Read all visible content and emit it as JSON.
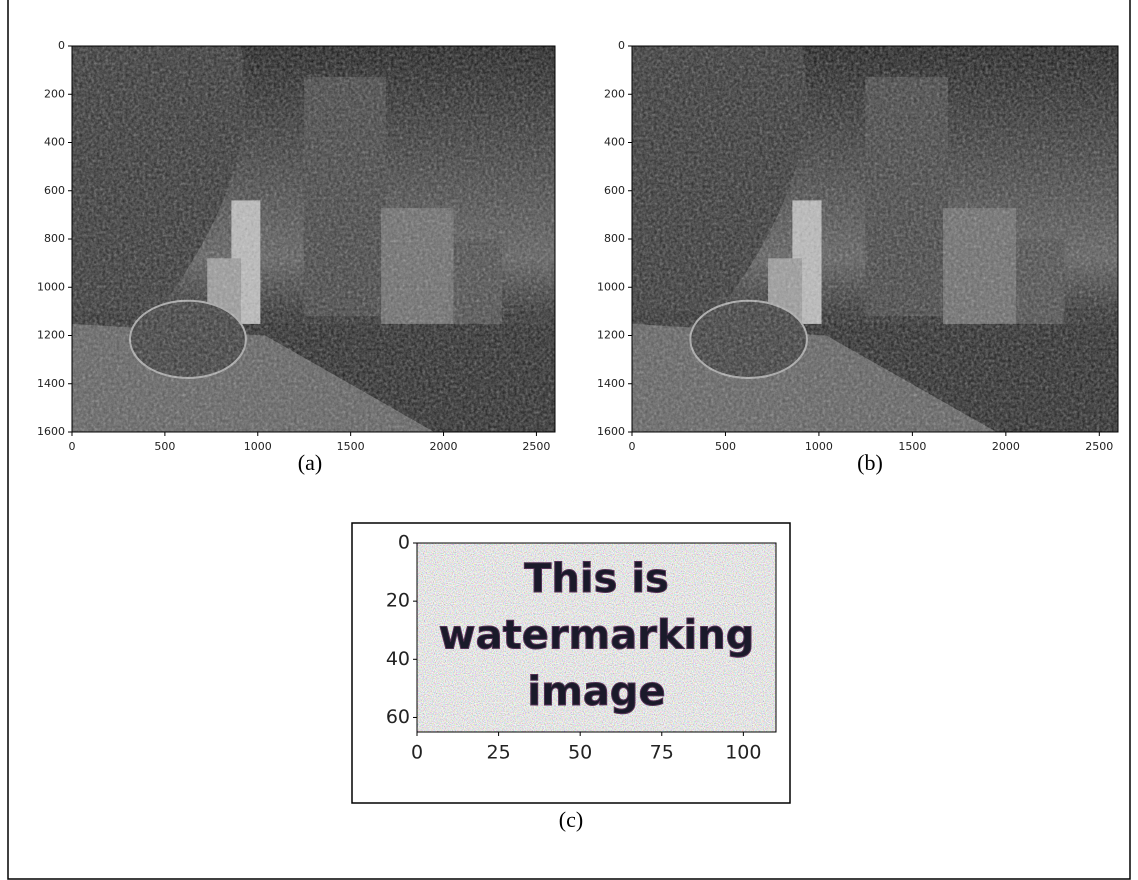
{
  "chart_data": [
    {
      "type": "image",
      "caption": "(a)",
      "xlim": [
        0,
        2600
      ],
      "ylim": [
        1600,
        0
      ],
      "xticks": [
        0,
        500,
        1000,
        1500,
        2000,
        2500
      ],
      "yticks": [
        0,
        200,
        400,
        600,
        800,
        1000,
        1200,
        1400,
        1600
      ]
    },
    {
      "type": "image",
      "caption": "(b)",
      "xlim": [
        0,
        2600
      ],
      "ylim": [
        1600,
        0
      ],
      "xticks": [
        0,
        500,
        1000,
        1500,
        2000,
        2500
      ],
      "yticks": [
        0,
        200,
        400,
        600,
        800,
        1000,
        1200,
        1400,
        1600
      ]
    },
    {
      "type": "image",
      "caption": "(c)",
      "xlim": [
        0,
        110
      ],
      "ylim": [
        65,
        0
      ],
      "xticks": [
        0,
        25,
        50,
        75,
        100
      ],
      "yticks": [
        0,
        20,
        40,
        60
      ],
      "image_text": [
        "This is",
        "watermarking",
        "image"
      ]
    }
  ]
}
